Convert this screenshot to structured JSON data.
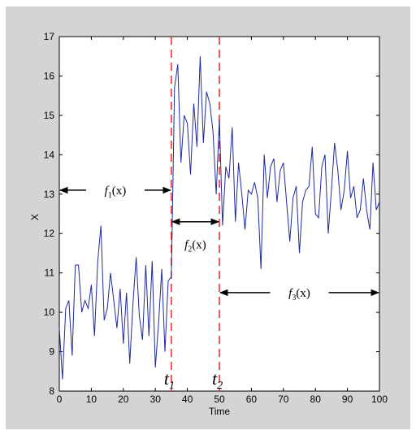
{
  "chart_data": {
    "type": "line",
    "xlabel": "Time",
    "ylabel": "X",
    "xlim": [
      0,
      100
    ],
    "ylim": [
      8,
      17
    ],
    "x_ticks": [
      "0",
      "10",
      "20",
      "30",
      "40",
      "50",
      "60",
      "70",
      "80",
      "90",
      "100"
    ],
    "y_ticks": [
      "8",
      "9",
      "10",
      "11",
      "12",
      "13",
      "14",
      "15",
      "16",
      "17"
    ],
    "grid": false,
    "series": [
      {
        "color": "#1f2a9c",
        "x": [
          0,
          1,
          2,
          3,
          4,
          5,
          6,
          7,
          8,
          9,
          10,
          11,
          12,
          13,
          14,
          15,
          16,
          17,
          18,
          19,
          20,
          21,
          22,
          23,
          24,
          25,
          26,
          27,
          28,
          29,
          30,
          31,
          32,
          33,
          34,
          35,
          36,
          37,
          38,
          39,
          40,
          41,
          42,
          43,
          44,
          45,
          46,
          47,
          48,
          49,
          50,
          51,
          52,
          53,
          54,
          55,
          56,
          57,
          58,
          59,
          60,
          61,
          62,
          63,
          64,
          65,
          66,
          67,
          68,
          69,
          70,
          71,
          72,
          73,
          74,
          75,
          76,
          77,
          78,
          79,
          80,
          81,
          82,
          83,
          84,
          85,
          86,
          87,
          88,
          89,
          90,
          91,
          92,
          93,
          94,
          95,
          96,
          97,
          98,
          99,
          100
        ],
        "values": [
          9.6,
          8.3,
          10.1,
          10.3,
          8.9,
          11.2,
          11.2,
          10.0,
          10.3,
          10.1,
          10.7,
          9.4,
          11.3,
          12.2,
          9.8,
          10.1,
          11.0,
          10.3,
          9.6,
          10.6,
          9.2,
          10.5,
          8.7,
          10.2,
          11.4,
          9.9,
          9.3,
          11.2,
          9.4,
          11.3,
          8.6,
          9.7,
          11.1,
          9.0,
          10.8,
          10.9,
          15.7,
          16.3,
          13.8,
          15.0,
          14.8,
          13.5,
          15.3,
          14.2,
          16.5,
          14.3,
          15.6,
          15.3,
          14.6,
          13.0,
          14.9,
          12.2,
          13.7,
          13.4,
          14.7,
          12.3,
          13.8,
          13.0,
          12.1,
          13.1,
          13.0,
          13.3,
          12.9,
          11.1,
          14.0,
          12.9,
          13.7,
          13.9,
          12.8,
          13.6,
          13.8,
          12.8,
          11.8,
          12.9,
          13.2,
          11.5,
          12.8,
          13.1,
          13.2,
          14.2,
          12.5,
          12.4,
          13.7,
          14.0,
          12.0,
          13.1,
          14.3,
          13.6,
          12.6,
          13.1,
          14.1,
          12.9,
          13.2,
          12.4,
          12.6,
          13.4,
          12.6,
          12.1,
          13.8,
          12.6,
          12.8
        ]
      }
    ],
    "change_points": [
      {
        "x": 35,
        "label": "t",
        "subscript": "1",
        "color": "#e8262c"
      },
      {
        "x": 50,
        "label": "t",
        "subscript": "2",
        "color": "#e8262c"
      }
    ],
    "annotations": [
      {
        "text": "f",
        "subscript": "1",
        "arg": "(x)",
        "x_from": 0,
        "x_to": 35,
        "y": 13.1
      },
      {
        "text": "f",
        "subscript": "2",
        "arg": "(x)",
        "x_from": 35,
        "x_to": 50,
        "y": 12.3
      },
      {
        "text": "f",
        "subscript": "3",
        "arg": "(x)",
        "x_from": 50,
        "x_to": 100,
        "y": 10.5
      }
    ]
  }
}
